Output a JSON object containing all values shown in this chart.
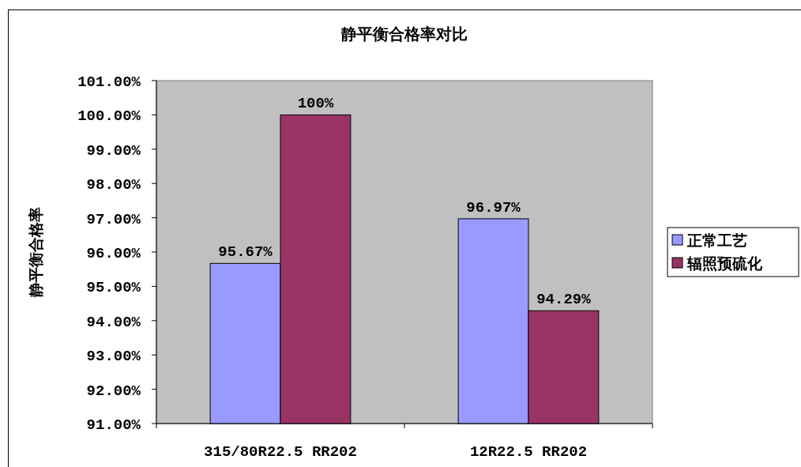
{
  "chart_data": {
    "type": "bar",
    "title": "静平衡合格率对比",
    "ylabel": "静平衡合格率",
    "categories": [
      "315/80R22.5 RR202",
      "12R22.5 RR202"
    ],
    "series": [
      {
        "name": "正常工艺",
        "color": "#9999ff",
        "values": [
          95.67,
          96.97
        ],
        "value_labels": [
          "95.67%",
          "96.97%"
        ]
      },
      {
        "name": "辐照预硫化",
        "color": "#993366",
        "values": [
          100,
          94.29
        ],
        "value_labels": [
          "100%",
          "94.29%"
        ]
      }
    ],
    "ylim": [
      91,
      101
    ],
    "yticks": [
      {
        "value": 91,
        "label": "91.00%"
      },
      {
        "value": 92,
        "label": "92.00%"
      },
      {
        "value": 93,
        "label": "93.00%"
      },
      {
        "value": 94,
        "label": "94.00%"
      },
      {
        "value": 95,
        "label": "95.00%"
      },
      {
        "value": 96,
        "label": "96.00%"
      },
      {
        "value": 97,
        "label": "97.00%"
      },
      {
        "value": 98,
        "label": "98.00%"
      },
      {
        "value": 99,
        "label": "99.00%"
      },
      {
        "value": 100,
        "label": "100.00%"
      },
      {
        "value": 101,
        "label": "101.00%"
      }
    ],
    "grid": false,
    "legend": "right"
  }
}
